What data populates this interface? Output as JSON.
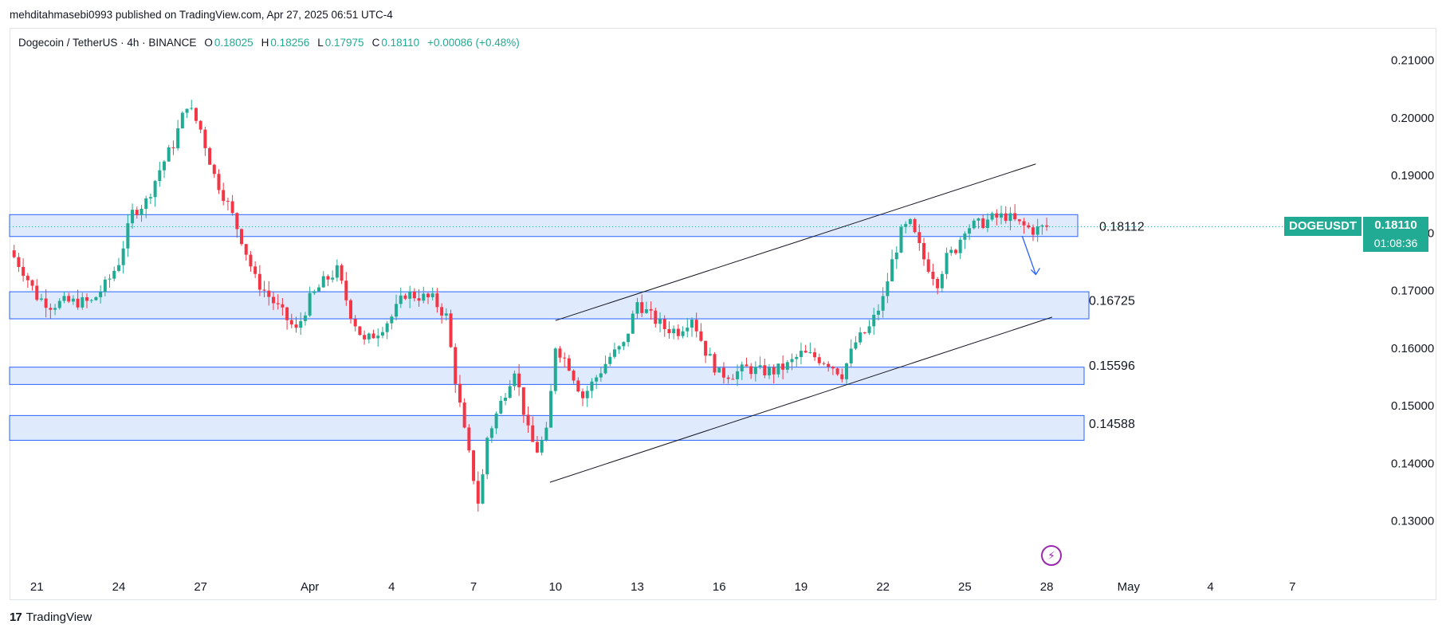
{
  "header": {
    "publisher": "mehditahmasebi0993 published on TradingView.com, Apr 27, 2025 06:51 UTC-4"
  },
  "legend": {
    "symbol": "Dogecoin / TetherUS · 4h · BINANCE",
    "open_label": "O",
    "open": "0.18025",
    "high_label": "H",
    "high": "0.18256",
    "low_label": "L",
    "low": "0.17975",
    "close_label": "C",
    "close": "0.18110",
    "change": "+0.00086 (+0.48%)"
  },
  "ticker": {
    "name": "DOGEUSDT",
    "price": "0.18110",
    "countdown": "01:08:36"
  },
  "footer": {
    "brand": "TradingView",
    "logo_mark": "17"
  },
  "icons": {
    "flash": "lightning-icon"
  },
  "colors": {
    "up": "#22ab94",
    "down": "#f23645",
    "zone_fill": "#dbe6fd",
    "zone_stroke": "#2962ff",
    "channel": "#131722",
    "arrow": "#2962ff",
    "accent_purple": "#9c27b0"
  },
  "chart_data": {
    "type": "candlestick",
    "title": "Dogecoin / TetherUS · 4h · BINANCE",
    "ylim": [
      0.1208,
      0.2155
    ],
    "y_ticks": [
      "0.21000",
      "0.20000",
      "0.19000",
      "0.18000",
      "0.17000",
      "0.16000",
      "0.15000",
      "0.14000",
      "0.13000"
    ],
    "x_ticks": [
      {
        "label": "21",
        "day": 0
      },
      {
        "label": "24",
        "day": 3
      },
      {
        "label": "27",
        "day": 6
      },
      {
        "label": "Apr",
        "day": 10
      },
      {
        "label": "4",
        "day": 13
      },
      {
        "label": "7",
        "day": 16
      },
      {
        "label": "10",
        "day": 19
      },
      {
        "label": "13",
        "day": 22
      },
      {
        "label": "16",
        "day": 25
      },
      {
        "label": "19",
        "day": 28
      },
      {
        "label": "22",
        "day": 31
      },
      {
        "label": "25",
        "day": 34
      },
      {
        "label": "28",
        "day": 37
      },
      {
        "label": "May",
        "day": 40
      },
      {
        "label": "4",
        "day": 43
      },
      {
        "label": "7",
        "day": 46
      }
    ],
    "x_range_days": [
      -1.0,
      48.3
    ],
    "price_series_close": [
      [
        -1.0,
        0.177
      ],
      [
        -0.5,
        0.1735
      ],
      [
        0.0,
        0.169
      ],
      [
        0.5,
        0.1675
      ],
      [
        1.0,
        0.168
      ],
      [
        2.0,
        0.168
      ],
      [
        2.6,
        0.1715
      ],
      [
        3.0,
        0.175
      ],
      [
        3.5,
        0.1835
      ],
      [
        4.0,
        0.1855
      ],
      [
        4.5,
        0.191
      ],
      [
        5.0,
        0.1955
      ],
      [
        5.5,
        0.2025
      ],
      [
        6.0,
        0.198
      ],
      [
        6.5,
        0.19
      ],
      [
        7.0,
        0.185
      ],
      [
        7.5,
        0.179
      ],
      [
        8.0,
        0.172
      ],
      [
        8.5,
        0.169
      ],
      [
        9.0,
        0.166
      ],
      [
        9.5,
        0.163
      ],
      [
        10.0,
        0.1685
      ],
      [
        10.5,
        0.1715
      ],
      [
        11.0,
        0.1735
      ],
      [
        11.5,
        0.166
      ],
      [
        12.0,
        0.161
      ],
      [
        12.5,
        0.163
      ],
      [
        13.0,
        0.1655
      ],
      [
        13.5,
        0.1695
      ],
      [
        14.0,
        0.169
      ],
      [
        14.5,
        0.1685
      ],
      [
        15.0,
        0.1655
      ],
      [
        15.3,
        0.1555
      ],
      [
        15.7,
        0.1445
      ],
      [
        16.0,
        0.1375
      ],
      [
        16.2,
        0.1325
      ],
      [
        16.5,
        0.1445
      ],
      [
        17.0,
        0.1505
      ],
      [
        17.5,
        0.1565
      ],
      [
        18.0,
        0.1455
      ],
      [
        18.3,
        0.142
      ],
      [
        18.7,
        0.1455
      ],
      [
        19.0,
        0.1605
      ],
      [
        19.5,
        0.157
      ],
      [
        20.0,
        0.1515
      ],
      [
        20.5,
        0.155
      ],
      [
        21.0,
        0.1585
      ],
      [
        21.5,
        0.1605
      ],
      [
        22.0,
        0.168
      ],
      [
        22.5,
        0.1655
      ],
      [
        23.0,
        0.1635
      ],
      [
        23.5,
        0.163
      ],
      [
        24.0,
        0.1655
      ],
      [
        24.5,
        0.1595
      ],
      [
        25.0,
        0.1555
      ],
      [
        25.5,
        0.1555
      ],
      [
        26.0,
        0.1565
      ],
      [
        26.5,
        0.156
      ],
      [
        27.0,
        0.156
      ],
      [
        27.5,
        0.157
      ],
      [
        28.0,
        0.159
      ],
      [
        28.5,
        0.1585
      ],
      [
        29.0,
        0.1575
      ],
      [
        29.5,
        0.1555
      ],
      [
        30.0,
        0.161
      ],
      [
        30.5,
        0.1635
      ],
      [
        31.0,
        0.1685
      ],
      [
        31.3,
        0.1745
      ],
      [
        31.7,
        0.1805
      ],
      [
        32.0,
        0.1815
      ],
      [
        32.5,
        0.1755
      ],
      [
        33.0,
        0.1715
      ],
      [
        33.3,
        0.1755
      ],
      [
        33.7,
        0.1775
      ],
      [
        34.0,
        0.181
      ],
      [
        34.5,
        0.1815
      ],
      [
        35.0,
        0.1825
      ],
      [
        35.5,
        0.183
      ],
      [
        36.0,
        0.1815
      ],
      [
        36.5,
        0.1805
      ],
      [
        37.0,
        0.1811
      ]
    ],
    "zones": [
      {
        "low": 0.1794,
        "high": 0.1832
      },
      {
        "low": 0.1651,
        "high": 0.1698
      },
      {
        "low": 0.1537,
        "high": 0.1567
      },
      {
        "low": 0.144,
        "high": 0.1483
      }
    ],
    "level_labels": [
      "0.18112",
      "0.16725",
      "0.15596",
      "0.14588"
    ],
    "level_values": [
      0.18112,
      0.16725,
      0.15596,
      0.14588
    ],
    "channel_lines": [
      {
        "x1": 19.0,
        "y1": 0.1648,
        "x2": 36.6,
        "y2": 0.192
      },
      {
        "x1": 18.8,
        "y1": 0.1367,
        "x2": 37.2,
        "y2": 0.1654
      }
    ],
    "arrow": {
      "x1": 36.1,
      "y1": 0.1795,
      "x2": 36.6,
      "y2": 0.1728
    },
    "last_price": 0.1811
  }
}
